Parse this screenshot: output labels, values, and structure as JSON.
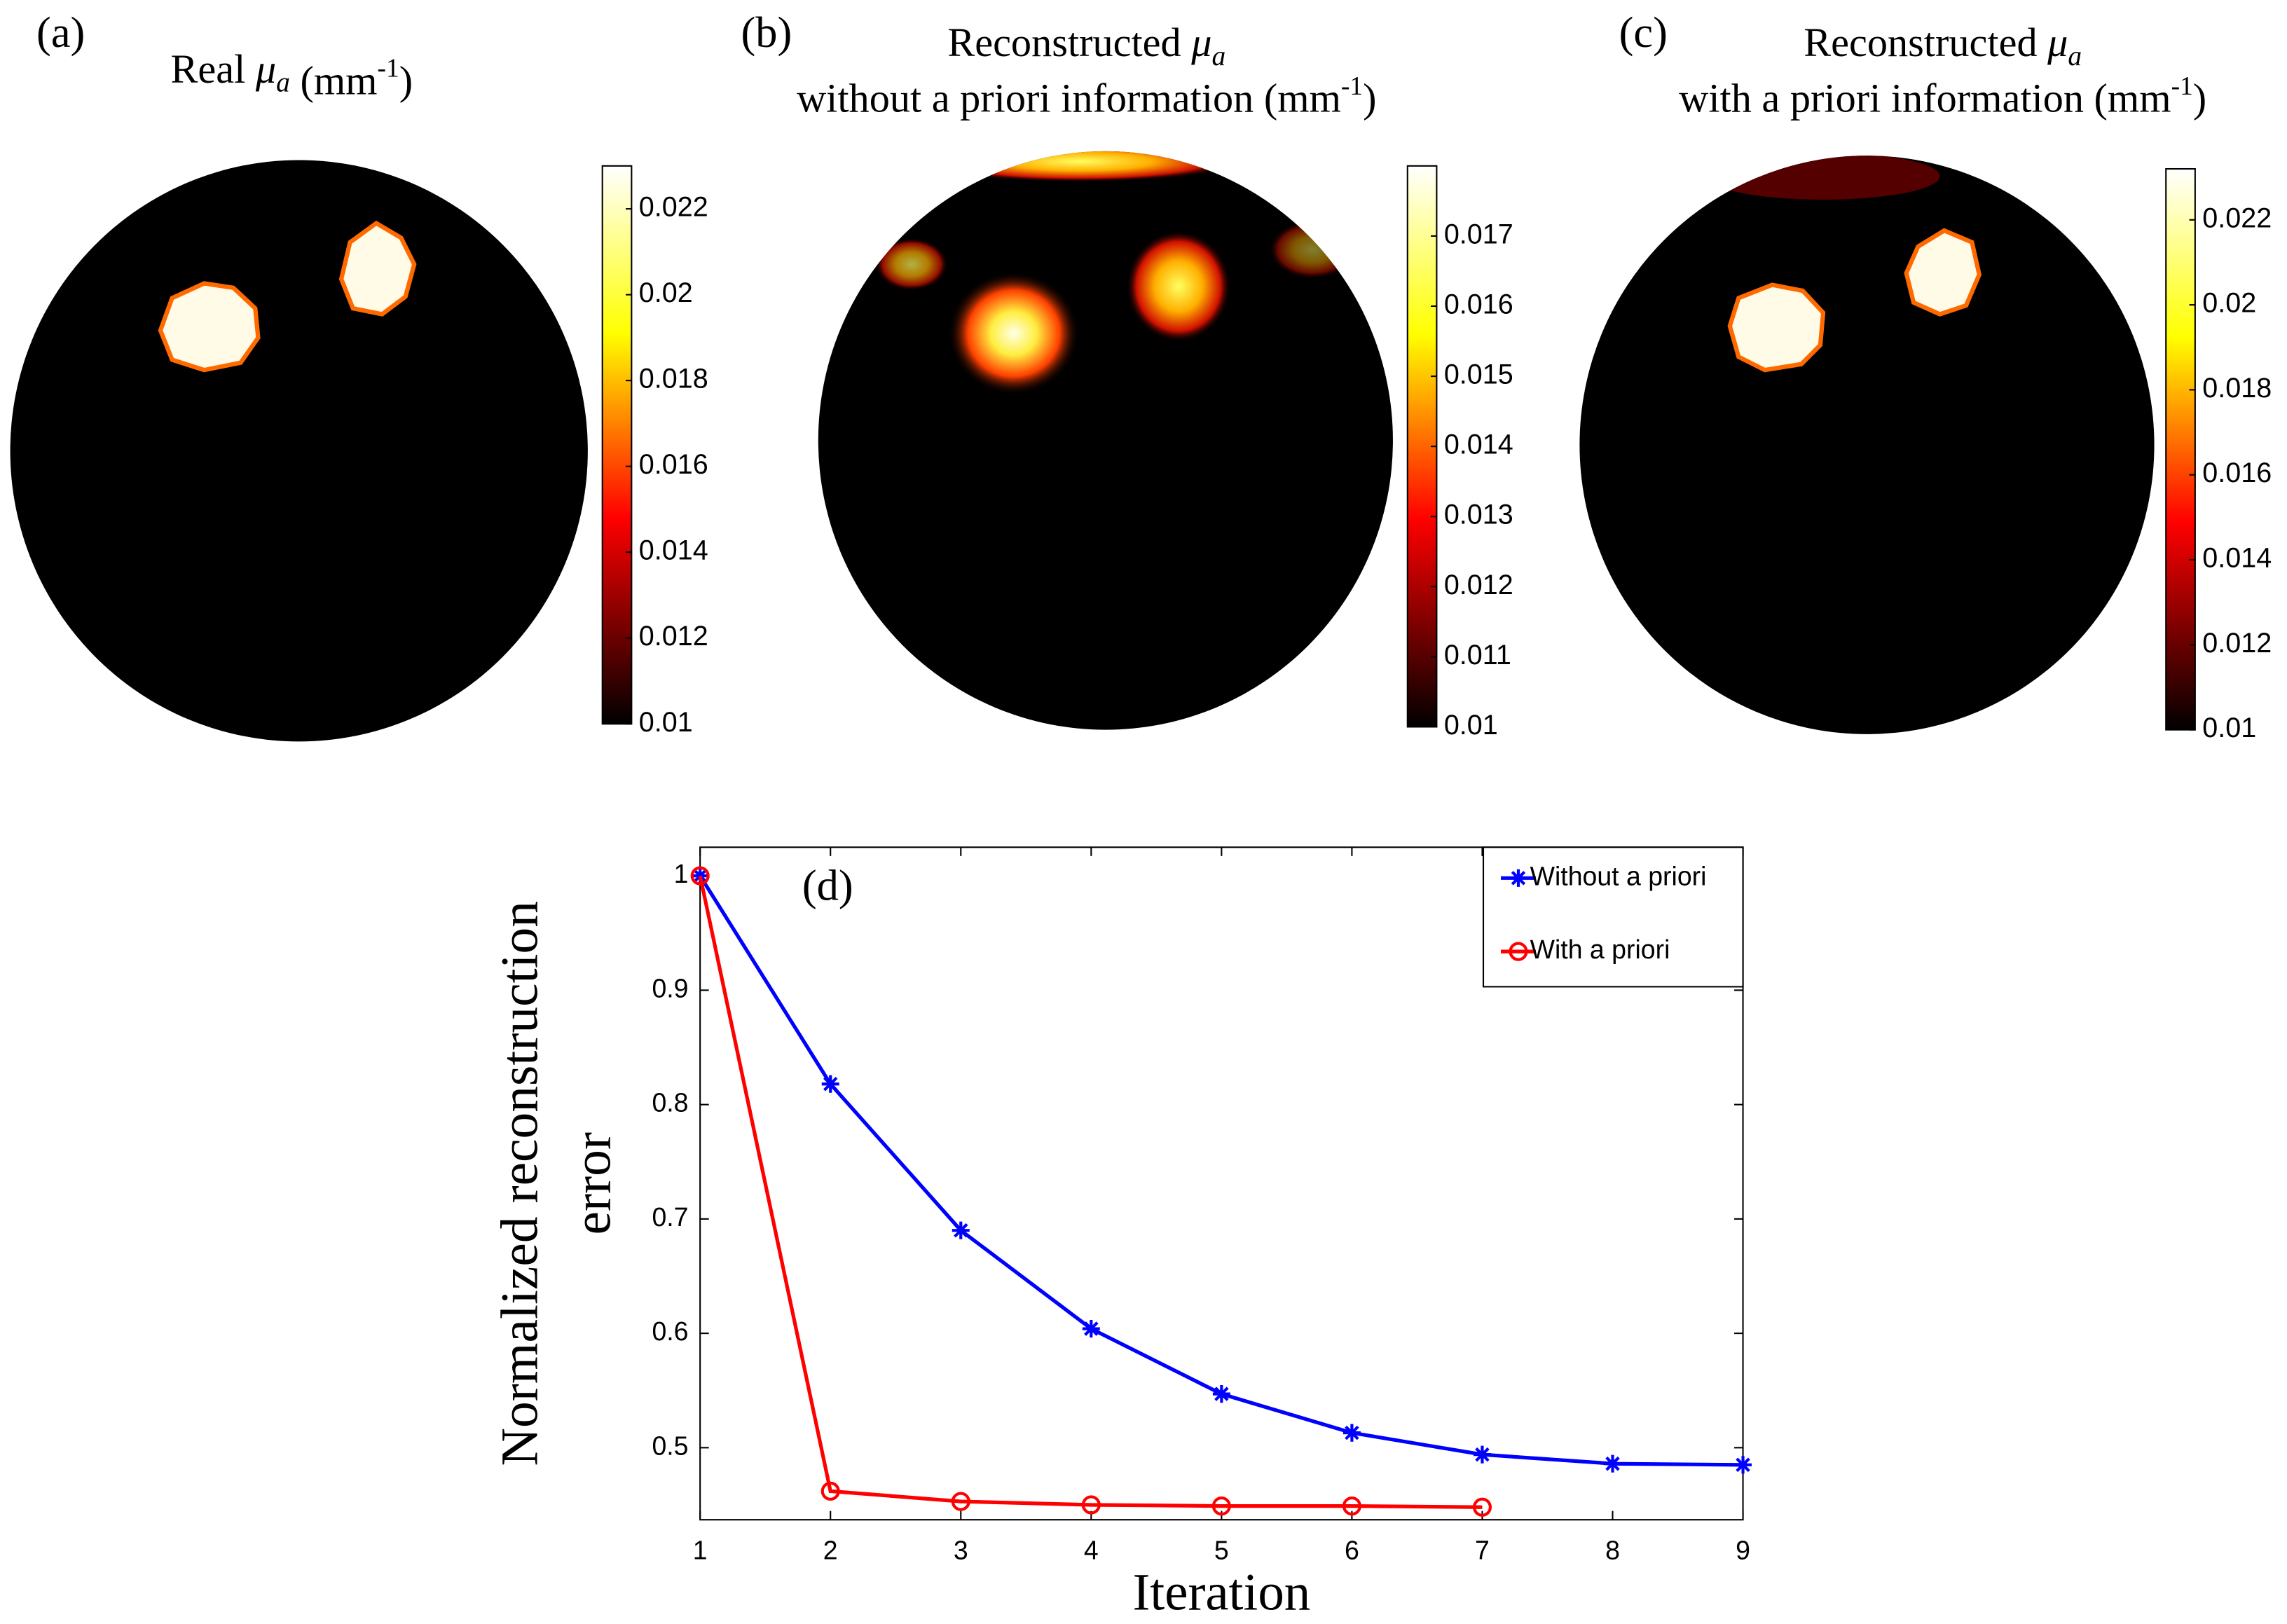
{
  "chart_data": [
    {
      "type": "heatmap",
      "panel_label": "(a)",
      "title_lines": [
        [
          "Real ",
          "μ",
          "a",
          " (mm",
          "-1",
          ")"
        ]
      ],
      "colorbar_lim": [
        0.01,
        0.023
      ],
      "colorbar_ticks": [
        0.01,
        0.012,
        0.014,
        0.016,
        0.018,
        0.02,
        0.022
      ]
    },
    {
      "type": "heatmap",
      "panel_label": "(b)",
      "title_lines": [
        [
          "Reconstructed ",
          "μ",
          "a"
        ],
        [
          "without a priori information (mm",
          "-1",
          ")"
        ]
      ],
      "colorbar_lim": [
        0.01,
        0.018
      ],
      "colorbar_ticks": [
        0.01,
        0.011,
        0.012,
        0.013,
        0.014,
        0.015,
        0.016,
        0.017
      ]
    },
    {
      "type": "heatmap",
      "panel_label": "(c)",
      "title_lines": [
        [
          "Reconstructed ",
          "μ",
          "a"
        ],
        [
          "with a priori information (mm",
          "-1",
          ")"
        ]
      ],
      "colorbar_lim": [
        0.01,
        0.0232
      ],
      "colorbar_ticks": [
        0.01,
        0.012,
        0.014,
        0.016,
        0.018,
        0.02,
        0.022
      ]
    },
    {
      "type": "line",
      "annotation": "(d)",
      "xlabel": "Iteration",
      "ylabel_lines": [
        "Normalized reconstruction",
        "error"
      ],
      "xlim": [
        1,
        9
      ],
      "xticks": [
        1,
        2,
        3,
        4,
        5,
        6,
        7,
        8,
        9
      ],
      "ylim": [
        0.437,
        1.025
      ],
      "yticks": [
        0.5,
        0.6,
        0.7,
        0.8,
        0.9,
        1
      ],
      "grid": false,
      "legend": "upper right",
      "series": [
        {
          "name": "Without a priori",
          "color": "#0000ff",
          "marker": "star",
          "x": [
            1,
            2,
            3,
            4,
            5,
            6,
            7,
            8,
            9
          ],
          "values": [
            1,
            0.818,
            0.69,
            0.604,
            0.547,
            0.513,
            0.494,
            0.486,
            0.485
          ]
        },
        {
          "name": "With a priori",
          "color": "#ff0000",
          "marker": "circle",
          "x": [
            1,
            2,
            3,
            4,
            5,
            6,
            7
          ],
          "values": [
            1,
            0.462,
            0.453,
            0.45,
            0.449,
            0.449,
            0.448
          ]
        }
      ]
    }
  ]
}
